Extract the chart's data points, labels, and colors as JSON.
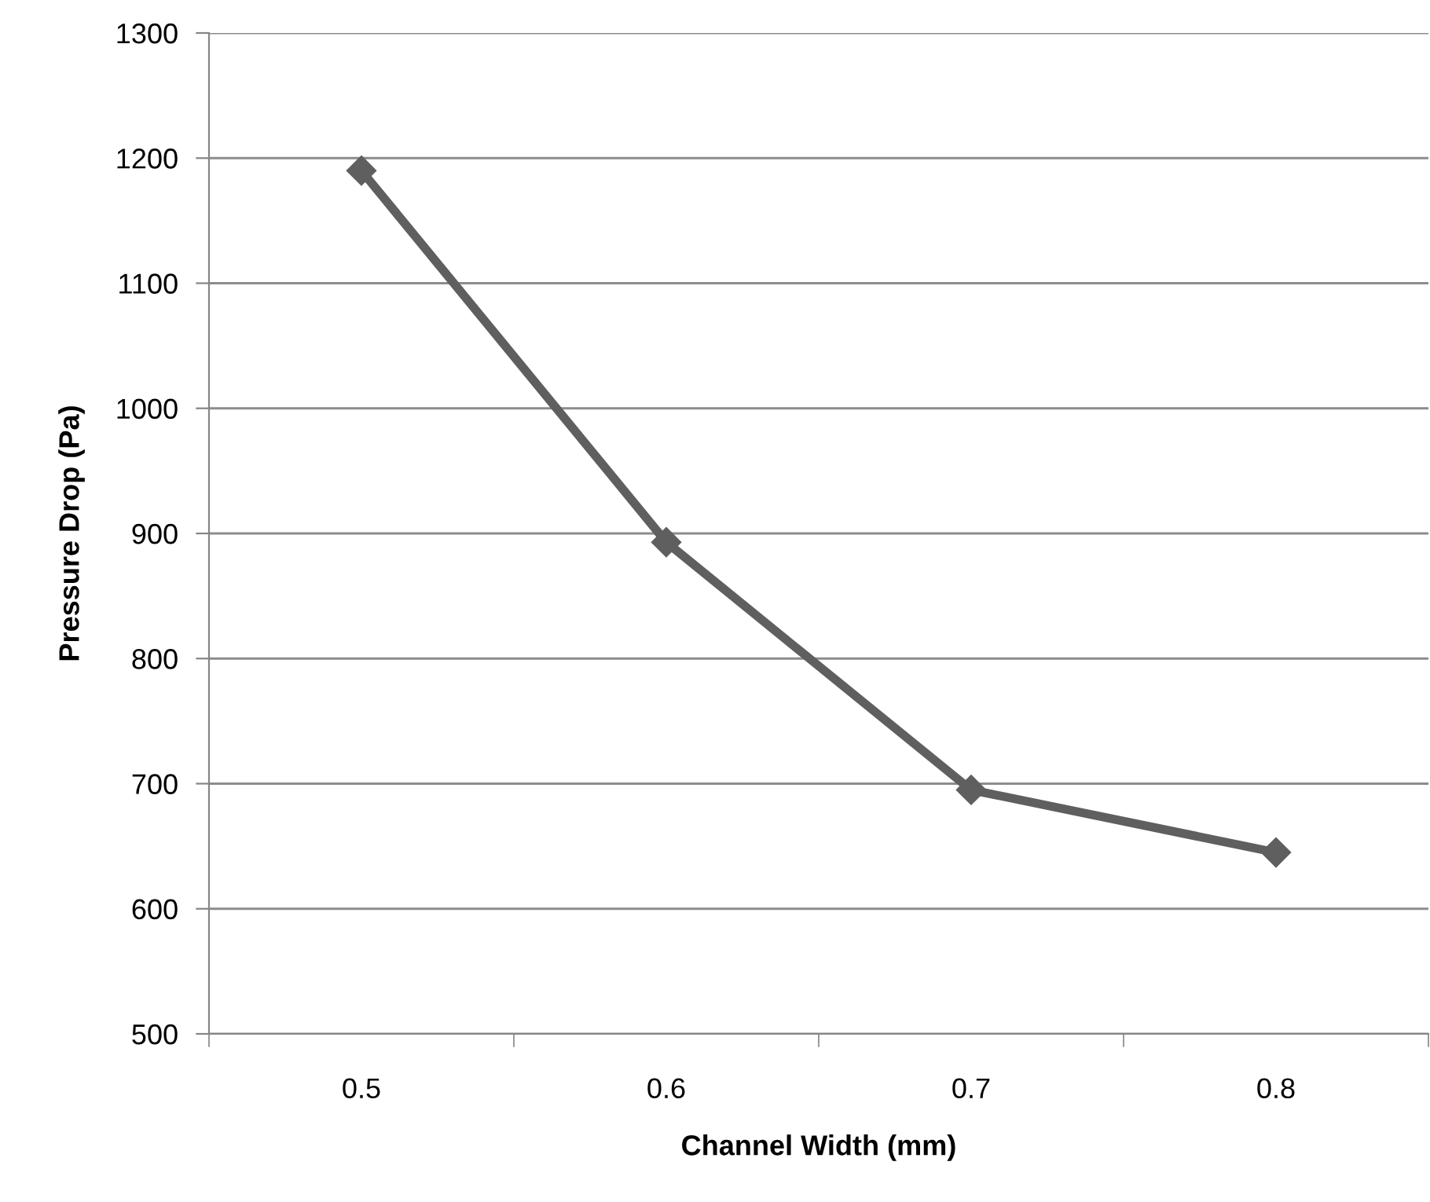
{
  "chart_data": {
    "type": "line",
    "xlabel": "Channel Width (mm)",
    "ylabel": "Pressure Drop (Pa)",
    "categories": [
      "0.5",
      "0.6",
      "0.7",
      "0.8"
    ],
    "series": [
      {
        "color": "#5f5f5f",
        "values": [
          1190,
          893,
          695,
          645
        ]
      }
    ],
    "ylim": [
      500,
      1300
    ],
    "yticks": [
      500,
      600,
      700,
      800,
      900,
      1000,
      1100,
      1200,
      1300
    ],
    "grid": "y",
    "marker": "diamond",
    "line_style": "solid"
  }
}
